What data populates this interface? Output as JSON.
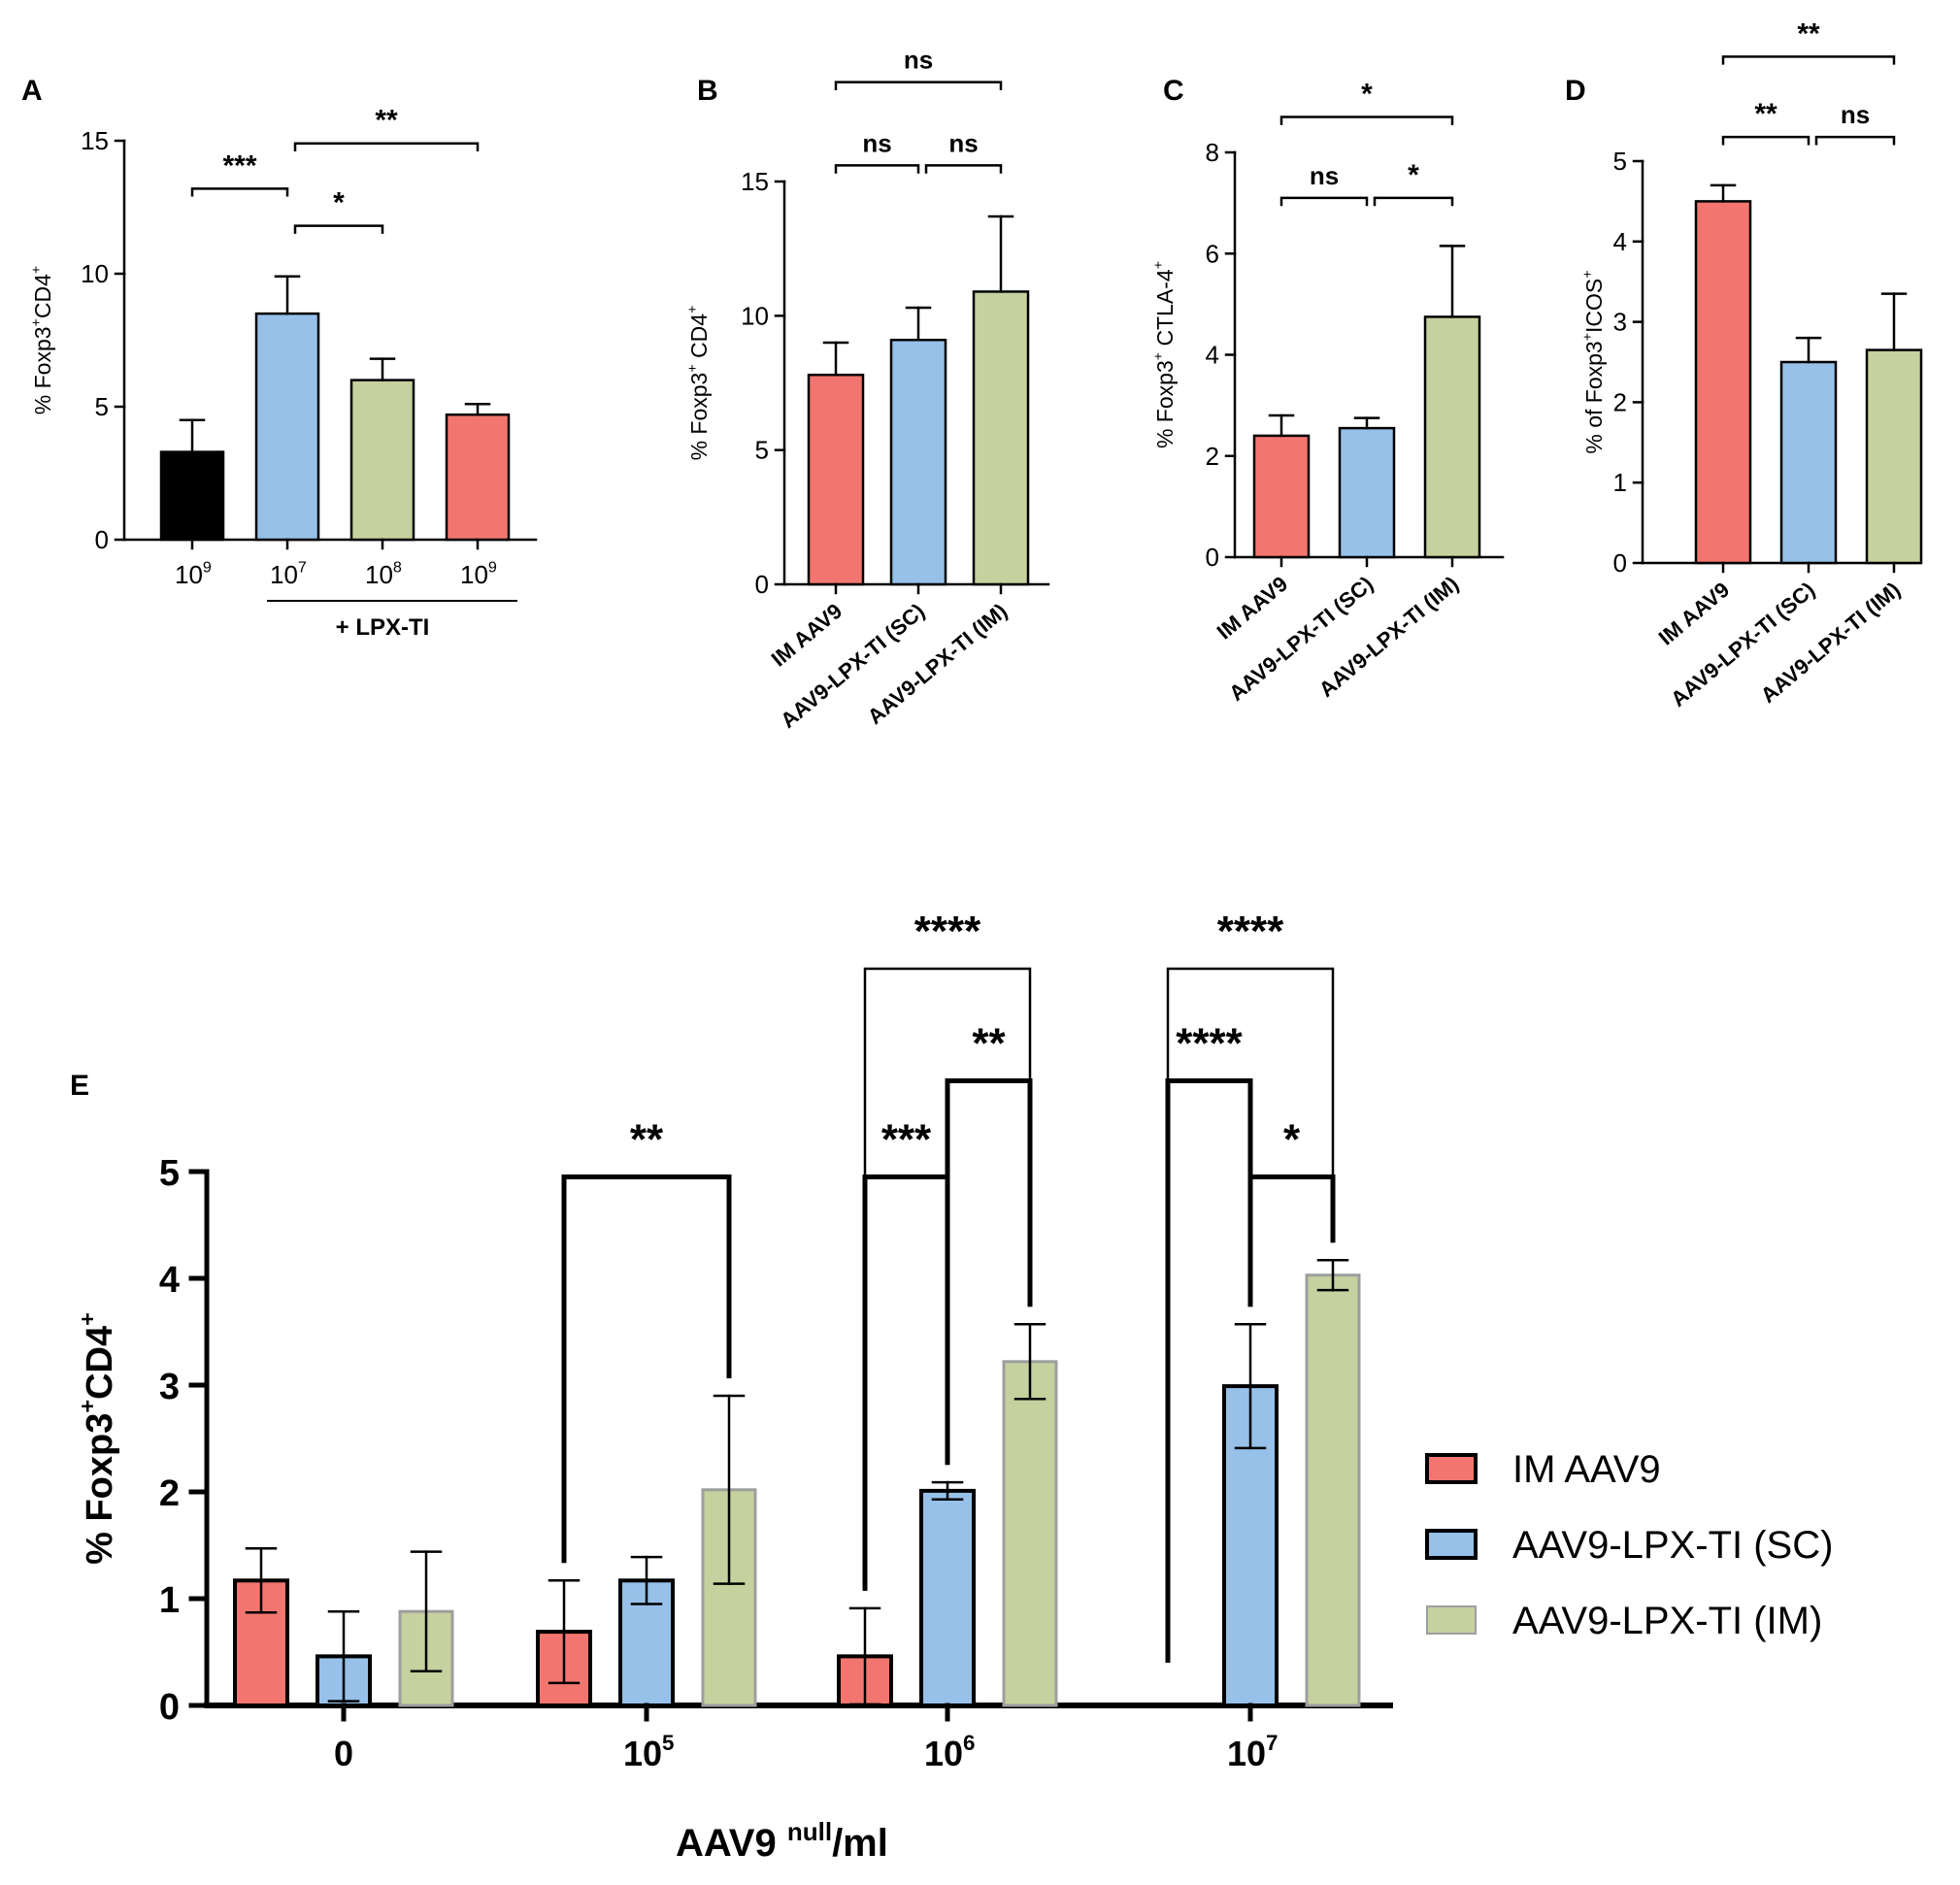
{
  "colors": {
    "red": "#f2766f",
    "blue": "#97c1e9",
    "green": "#c5d19e",
    "black": "#000000",
    "green_outline": "#9e9e9e"
  },
  "chart_data": [
    {
      "panel": "A",
      "type": "bar",
      "ylabel_parts": [
        "% Foxp3",
        "+",
        "CD4",
        "+"
      ],
      "ylim": [
        0,
        15
      ],
      "yticks": [
        "0",
        "5",
        "10",
        "15"
      ],
      "bars": [
        {
          "label_base": "10",
          "label_exp": "9",
          "value": 3.3,
          "err": 1.2,
          "color": "black"
        },
        {
          "label_base": "10",
          "label_exp": "7",
          "value": 8.5,
          "err": 1.4,
          "color": "blue"
        },
        {
          "label_base": "10",
          "label_exp": "8",
          "value": 6.0,
          "err": 0.8,
          "color": "green"
        },
        {
          "label_base": "10",
          "label_exp": "9",
          "value": 4.7,
          "err": 0.4,
          "color": "red"
        }
      ],
      "group_label": "+ LPX-TI",
      "significance": [
        {
          "from": 0,
          "to": 1,
          "text": "***",
          "level": 13.2
        },
        {
          "from": 1,
          "to": 2,
          "text": "*",
          "level": 11.8
        },
        {
          "from": 1,
          "to": 3,
          "text": "**",
          "level": 14.9
        }
      ]
    },
    {
      "panel": "B",
      "type": "bar",
      "ylabel_parts": [
        "% Foxp3",
        "+",
        " CD4",
        "+"
      ],
      "ylim": [
        0,
        15
      ],
      "yticks": [
        "0",
        "5",
        "10",
        "15"
      ],
      "bars": [
        {
          "label": "IM AAV9",
          "value": 7.8,
          "err": 1.2,
          "color": "red"
        },
        {
          "label": "AAV9-LPX-TI (SC)",
          "value": 9.1,
          "err": 1.2,
          "color": "blue"
        },
        {
          "label": "AAV9-LPX-TI (IM)",
          "value": 10.9,
          "err": 2.8,
          "color": "green"
        }
      ],
      "significance": [
        {
          "from": 0,
          "to": 1,
          "text": "ns",
          "level": 15.6
        },
        {
          "from": 1,
          "to": 2,
          "text": "ns",
          "level": 15.6
        },
        {
          "from": 0,
          "to": 2,
          "text": "ns",
          "level": 18.7
        }
      ]
    },
    {
      "panel": "C",
      "type": "bar",
      "ylabel_parts": [
        "% Foxp3",
        "+",
        " CTLA-4",
        "+"
      ],
      "ylim": [
        0,
        8
      ],
      "yticks": [
        "0",
        "2",
        "4",
        "6",
        "8"
      ],
      "bars": [
        {
          "label": "IM AAV9",
          "value": 2.4,
          "err": 0.4,
          "color": "red"
        },
        {
          "label": "AAV9-LPX-TI (SC)",
          "value": 2.55,
          "err": 0.2,
          "color": "blue"
        },
        {
          "label": "AAV9-LPX-TI (IM)",
          "value": 4.75,
          "err": 1.4,
          "color": "green"
        }
      ],
      "significance": [
        {
          "from": 0,
          "to": 1,
          "text": "ns",
          "level": 7.1
        },
        {
          "from": 1,
          "to": 2,
          "text": "*",
          "level": 7.1
        },
        {
          "from": 0,
          "to": 2,
          "text": "*",
          "level": 8.7
        }
      ]
    },
    {
      "panel": "D",
      "type": "bar",
      "ylabel_parts": [
        "% of Foxp3",
        "+",
        "ICOS",
        "+"
      ],
      "ylim": [
        0,
        5
      ],
      "yticks": [
        "0",
        "1",
        "2",
        "3",
        "4",
        "5"
      ],
      "bars": [
        {
          "label": "IM AAV9",
          "value": 4.5,
          "err": 0.2,
          "color": "red"
        },
        {
          "label": "AAV9-LPX-TI (SC)",
          "value": 2.5,
          "err": 0.3,
          "color": "blue"
        },
        {
          "label": "AAV9-LPX-TI (IM)",
          "value": 2.65,
          "err": 0.7,
          "color": "green"
        }
      ],
      "significance": [
        {
          "from": 0,
          "to": 1,
          "text": "**",
          "level": 5.3
        },
        {
          "from": 1,
          "to": 2,
          "text": "ns",
          "level": 5.3
        },
        {
          "from": 0,
          "to": 2,
          "text": "**",
          "level": 6.3
        }
      ]
    },
    {
      "panel": "E",
      "type": "grouped_bar",
      "ylabel_parts": [
        "% Foxp3",
        "+",
        "CD4",
        "+"
      ],
      "xlabel_base": "AAV9 ",
      "xlabel_sup": "null",
      "xlabel_rest": "/ml",
      "ylim": [
        0,
        5
      ],
      "yticks": [
        "0",
        "1",
        "2",
        "3",
        "4",
        "5"
      ],
      "categories": [
        {
          "base": "0",
          "exp": ""
        },
        {
          "base": "10",
          "exp": "5"
        },
        {
          "base": "10",
          "exp": "6"
        },
        {
          "base": "10",
          "exp": "7"
        }
      ],
      "series": [
        {
          "name": "IM AAV9",
          "color": "red",
          "values": [
            1.17,
            0.69,
            0.46,
            0
          ],
          "errs": [
            0.3,
            0.48,
            0.45,
            0
          ]
        },
        {
          "name": "AAV9-LPX-TI (SC)",
          "color": "blue",
          "values": [
            0.46,
            1.17,
            2.01,
            2.99
          ],
          "errs": [
            0.42,
            0.22,
            0.08,
            0.58
          ]
        },
        {
          "name": "AAV9-LPX-TI (IM)",
          "color": "green",
          "values": [
            0.88,
            2.02,
            3.22,
            4.03
          ],
          "errs": [
            0.56,
            0.88,
            0.35,
            0.14
          ]
        }
      ],
      "significance": [
        {
          "cat": 1,
          "from": 0,
          "to": 2,
          "text": "**",
          "level": 4.95
        },
        {
          "cat": 2,
          "from": 0,
          "to": 1,
          "text": "***",
          "level": 4.95
        },
        {
          "cat": 2,
          "from": 1,
          "to": 2,
          "text": "**",
          "level": 5.85
        },
        {
          "cat": 2,
          "from": 0,
          "to": 2,
          "text": "****",
          "level": 6.9
        },
        {
          "cat": 3,
          "from": 1,
          "to": 2,
          "text": "*",
          "level": 4.95
        },
        {
          "cat": 3,
          "from": 0,
          "to": 1,
          "text": "****",
          "level": 5.85
        },
        {
          "cat": 3,
          "from": 0,
          "to": 2,
          "text": "****",
          "level": 6.9
        }
      ]
    }
  ]
}
